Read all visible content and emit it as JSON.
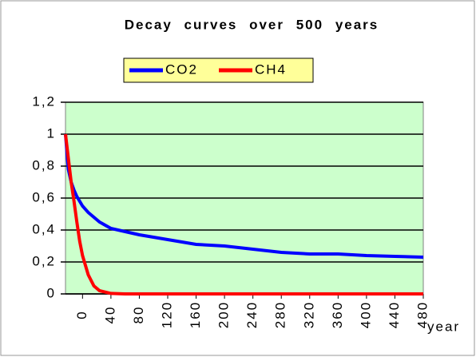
{
  "chart_data": {
    "type": "line",
    "title": "Decay curves over 500 years",
    "x_label": "year",
    "x": [
      -24,
      -20,
      -16,
      -12,
      -8,
      -4,
      0,
      8,
      16,
      24,
      40,
      60,
      80,
      120,
      160,
      200,
      240,
      280,
      320,
      360,
      400,
      440,
      480
    ],
    "series": [
      {
        "name": "CO2",
        "color": "#0000ff",
        "values": [
          1,
          0.78,
          0.7,
          0.65,
          0.61,
          0.58,
          0.55,
          0.51,
          0.48,
          0.45,
          0.41,
          0.39,
          0.37,
          0.34,
          0.31,
          0.3,
          0.28,
          0.26,
          0.25,
          0.25,
          0.24,
          0.235,
          0.23
        ]
      },
      {
        "name": "CH4",
        "color": "#ff0000",
        "values": [
          1,
          0.85,
          0.7,
          0.58,
          0.45,
          0.33,
          0.24,
          0.12,
          0.05,
          0.02,
          0.003,
          0,
          0,
          0,
          0,
          0,
          0,
          0,
          0,
          0,
          0,
          0,
          0
        ]
      }
    ],
    "xlim": [
      -24,
      480
    ],
    "xticks": [
      0,
      40,
      80,
      120,
      160,
      200,
      240,
      280,
      320,
      360,
      400,
      440,
      480
    ],
    "ylim": [
      0,
      1.2
    ],
    "yticks": [
      0,
      {
        "value": 0.2,
        "label": "0,2"
      },
      {
        "value": 0.4,
        "label": "0,4"
      },
      {
        "value": 0.6,
        "label": "0,6"
      },
      {
        "value": 0.8,
        "label": "0,8"
      },
      1,
      {
        "value": 1.2,
        "label": "1,2"
      }
    ],
    "grid": true,
    "plot_background": "#ccffcc",
    "legend_background": "#ffff99",
    "legend": "top"
  }
}
